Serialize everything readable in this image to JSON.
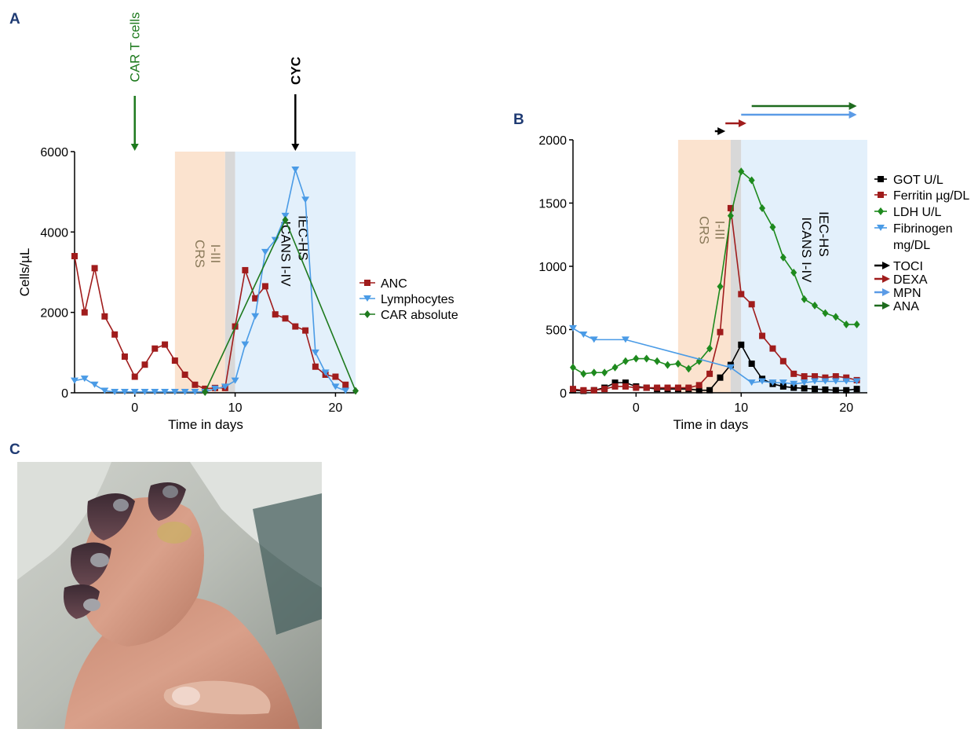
{
  "panels": {
    "a": "A",
    "b": "B",
    "c": "C"
  },
  "colors": {
    "anc": "#a01c1c",
    "lymph": "#4a9be6",
    "car": "#1e7a1e",
    "got": "#000000",
    "ferritin": "#a01c1c",
    "ldh": "#1e8a1e",
    "fib": "#4a9be6",
    "toci": "#000000",
    "dexa": "#a01c1c",
    "mpn": "#5b9be6",
    "ana": "#1e6b1e",
    "crs_band": "#fbe3cf",
    "grey_band": "#d8d8d8",
    "icans_band": "#e3f0fb"
  },
  "chart_data": [
    {
      "type": "line",
      "panel": "A",
      "xlabel": "Time in days",
      "ylabel": "Cells/µL",
      "xlim": [
        -6,
        22
      ],
      "ylim": [
        0,
        6000
      ],
      "xticks": [
        0,
        10,
        20
      ],
      "yticks": [
        0,
        2000,
        4000,
        6000
      ],
      "bands": [
        {
          "from": 4,
          "to": 9,
          "label1": "CRS",
          "label2": "I-III",
          "color": "crs"
        },
        {
          "from": 9,
          "to": 10,
          "color": "grey"
        },
        {
          "from": 10,
          "to": 22,
          "label1": "ICANS  I-IV",
          "label2": "IEC-HS",
          "color": "icans"
        }
      ],
      "events": [
        {
          "label": "CAR T cells",
          "x": 0,
          "color": "car"
        },
        {
          "label": "CYC",
          "x": 16,
          "color": "black"
        }
      ],
      "series": [
        {
          "name": "ANC",
          "marker": "square",
          "color": "anc",
          "x": [
            -6,
            -5,
            -4,
            -3,
            -2,
            -1,
            0,
            1,
            2,
            3,
            4,
            5,
            6,
            7,
            8,
            9,
            10,
            11,
            12,
            13,
            14,
            15,
            16,
            17,
            18,
            19,
            20,
            21
          ],
          "y": [
            3400,
            2000,
            3100,
            1900,
            1450,
            900,
            400,
            700,
            1100,
            1200,
            800,
            450,
            200,
            100,
            120,
            120,
            1650,
            3050,
            2350,
            2650,
            1950,
            1850,
            1650,
            1550,
            650,
            450,
            400,
            200
          ]
        },
        {
          "name": "Lymphocytes",
          "marker": "triangle-down",
          "color": "lymph",
          "x": [
            -6,
            -5,
            -4,
            -3,
            -2,
            -1,
            0,
            1,
            2,
            3,
            4,
            5,
            6,
            7,
            8,
            9,
            10,
            11,
            12,
            13,
            14,
            15,
            16,
            17,
            18,
            19,
            20,
            21
          ],
          "y": [
            300,
            350,
            200,
            50,
            20,
            20,
            20,
            20,
            20,
            20,
            20,
            20,
            20,
            20,
            100,
            150,
            300,
            1200,
            1900,
            3500,
            3800,
            4400,
            5550,
            4800,
            1000,
            500,
            150,
            50
          ]
        },
        {
          "name": "CAR   absolute",
          "marker": "diamond",
          "color": "car",
          "x": [
            7,
            15,
            22
          ],
          "y": [
            20,
            4300,
            50
          ]
        }
      ]
    },
    {
      "type": "line",
      "panel": "B",
      "xlabel": "Time in days",
      "ylabel": "",
      "xlim": [
        -6,
        22
      ],
      "ylim": [
        0,
        2000
      ],
      "xticks": [
        0,
        10,
        20
      ],
      "yticks": [
        0,
        500,
        1000,
        1500,
        2000
      ],
      "bands": [
        {
          "from": 4,
          "to": 9,
          "label1": "CRS",
          "label2": "I-III",
          "color": "crs"
        },
        {
          "from": 9,
          "to": 10,
          "color": "grey"
        },
        {
          "from": 10,
          "to": 22,
          "label1": "ICANS  I-IV",
          "label2": "IEC-HS",
          "color": "icans"
        }
      ],
      "therapy_arrows": [
        {
          "name": "TOCI",
          "from": 7.5,
          "to": 8.5,
          "color": "toci",
          "row": 0
        },
        {
          "name": "DEXA",
          "from": 8.5,
          "to": 10.5,
          "color": "dexa",
          "row": 1
        },
        {
          "name": "MPN",
          "from": 10,
          "to": 21,
          "color": "mpn",
          "row": 2
        },
        {
          "name": "ANA",
          "from": 11,
          "to": 21,
          "color": "ana",
          "row": 3
        }
      ],
      "series": [
        {
          "name": "GOT U/L",
          "marker": "square",
          "color": "got",
          "x": [
            -6,
            -5,
            -4,
            -3,
            -2,
            -1,
            0,
            1,
            2,
            3,
            4,
            5,
            6,
            7,
            8,
            9,
            10,
            11,
            12,
            13,
            14,
            15,
            16,
            17,
            18,
            19,
            20,
            21
          ],
          "y": [
            20,
            15,
            20,
            40,
            80,
            80,
            50,
            40,
            30,
            30,
            30,
            30,
            20,
            20,
            120,
            220,
            380,
            230,
            110,
            70,
            50,
            40,
            35,
            30,
            25,
            20,
            20,
            30
          ]
        },
        {
          "name": "Ferritin µg/DL",
          "marker": "square",
          "color": "ferritin",
          "x": [
            -6,
            -5,
            -4,
            -3,
            -2,
            -1,
            0,
            1,
            2,
            3,
            4,
            5,
            6,
            7,
            8,
            9,
            10,
            11,
            12,
            13,
            14,
            15,
            16,
            17,
            18,
            19,
            20,
            21
          ],
          "y": [
            30,
            20,
            20,
            30,
            50,
            50,
            40,
            40,
            40,
            40,
            40,
            40,
            60,
            150,
            480,
            1460,
            780,
            700,
            450,
            350,
            250,
            150,
            130,
            130,
            120,
            130,
            120,
            100
          ]
        },
        {
          "name": "LDH U/L",
          "marker": "diamond",
          "color": "ldh",
          "x": [
            -6,
            -5,
            -4,
            -3,
            -2,
            -1,
            0,
            1,
            2,
            3,
            4,
            5,
            6,
            7,
            8,
            9,
            10,
            11,
            12,
            13,
            14,
            15,
            16,
            17,
            18,
            19,
            20,
            21
          ],
          "y": [
            200,
            150,
            160,
            160,
            200,
            250,
            270,
            270,
            250,
            220,
            230,
            190,
            250,
            350,
            840,
            1400,
            1750,
            1680,
            1460,
            1310,
            1070,
            950,
            740,
            690,
            630,
            600,
            540,
            540
          ]
        },
        {
          "name": "Fibrinogen mg/DL",
          "marker": "triangle-down",
          "color": "fib",
          "x": [
            -6,
            -5,
            -4,
            -1,
            9,
            11,
            12,
            13,
            14,
            15,
            16,
            17,
            18,
            19,
            20,
            21
          ],
          "y": [
            510,
            460,
            420,
            420,
            200,
            80,
            90,
            80,
            80,
            70,
            80,
            90,
            90,
            90,
            90,
            90
          ]
        }
      ]
    }
  ],
  "legend_a": [
    "ANC",
    "Lymphocytes",
    "CAR   absolute"
  ],
  "legend_b_labs": [
    "GOT U/L",
    "Ferritin µg/DL",
    "LDH U/L",
    "Fibrinogen",
    "mg/DL"
  ],
  "legend_b_ther": [
    "TOCI",
    "DEXA",
    "MPN",
    "ANA"
  ]
}
